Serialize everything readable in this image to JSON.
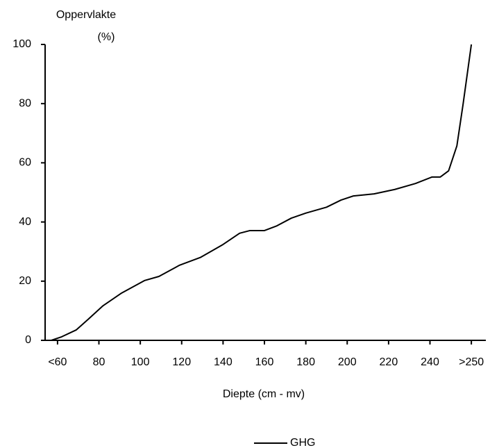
{
  "chart_data": {
    "type": "line",
    "ylabel": [
      "Oppervlakte",
      "(%)"
    ],
    "xlabel": "Diepte (cm - mv)",
    "x": [
      57,
      62,
      69,
      74,
      82,
      91,
      102,
      109,
      119,
      129,
      140,
      148,
      153,
      160,
      166,
      173,
      180,
      190,
      197,
      203,
      213,
      223,
      233,
      241,
      245,
      249,
      253,
      256,
      260
    ],
    "series": [
      {
        "name": "GHG",
        "color": "#000000",
        "values": [
          0,
          1.2,
          3.5,
          6.6,
          11.7,
          16,
          20.2,
          21.6,
          25.4,
          28,
          32.4,
          36.2,
          37.1,
          37.1,
          38.7,
          41.3,
          43,
          45,
          47.4,
          48.8,
          49.5,
          51,
          53,
          55.2,
          55.2,
          57.3,
          65.7,
          79.8,
          100
        ]
      }
    ],
    "xlim": [
      54,
      267
    ],
    "xticks": [
      {
        "value": 60,
        "label": "<60"
      },
      80,
      100,
      120,
      140,
      160,
      180,
      200,
      220,
      240,
      {
        "value": 260,
        "label": ">250"
      }
    ],
    "ylim": [
      0,
      100
    ],
    "yticks": [
      0,
      20,
      40,
      60,
      80,
      100
    ],
    "grid": false,
    "legend": "bottom"
  }
}
